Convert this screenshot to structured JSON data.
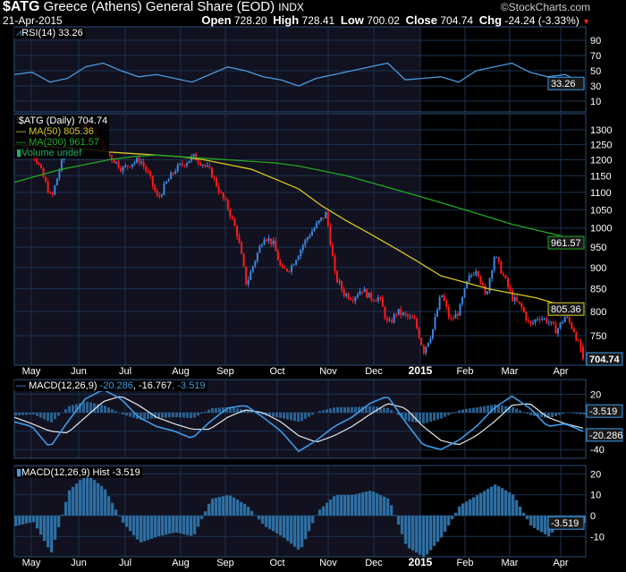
{
  "header": {
    "symbol": "$ATG",
    "name": "Greece (Athens) General Share (EOD)",
    "exchange": "INDX",
    "date": "21-Apr-2015",
    "copyright": "©StockCharts.com",
    "open_label": "Open",
    "open": "728.20",
    "high_label": "High",
    "high": "728.41",
    "low_label": "Low",
    "low": "700.02",
    "close_label": "Close",
    "close": "704.74",
    "chg_label": "Chg",
    "chg": "-24.24 (-3.33%)",
    "chg_arrow": "▼"
  },
  "colors": {
    "up": "#3d86e0",
    "down": "#ff1a1a",
    "ma50": "#d8c820",
    "ma200": "#22a822",
    "macd": "#3d9be8",
    "signal": "#e8e8e8",
    "hist": "#2f6fa3",
    "grid": "#1c3350",
    "bg_old": "#11111f",
    "bg_new": "#000000"
  },
  "chart_data": [
    {
      "type": "line",
      "title": "RSI(14) 33.26",
      "legend": "RSI(14) 33.26",
      "yticks": [
        "90",
        "70",
        "50",
        "30",
        "10"
      ],
      "ylim": [
        0,
        100
      ],
      "last_label": "33.26",
      "values": [
        45,
        48,
        35,
        40,
        55,
        60,
        50,
        42,
        45,
        40,
        35,
        45,
        55,
        50,
        42,
        38,
        30,
        40,
        45,
        50,
        55,
        60,
        38,
        40,
        42,
        35,
        50,
        55,
        60,
        48,
        42,
        45,
        33.26
      ]
    },
    {
      "type": "candlestick",
      "legend": [
        "$ATG (Daily) 704.74",
        "MA(50) 805.36",
        "MA(200) 961.57",
        "Volume undef"
      ],
      "scale": "log",
      "yticks": [
        "1300",
        "1250",
        "1200",
        "1150",
        "1100",
        "1050",
        "1000",
        "950",
        "900",
        "850",
        "800",
        "750"
      ],
      "closes": [
        1230,
        1250,
        1220,
        1150,
        1080,
        1180,
        1250,
        1300,
        1320,
        1280,
        1230,
        1200,
        1170,
        1190,
        1200,
        1150,
        1080,
        1130,
        1170,
        1190,
        1210,
        1190,
        1160,
        1100,
        1050,
        980,
        860,
        920,
        980,
        960,
        890,
        900,
        940,
        980,
        1010,
        1040,
        880,
        840,
        830,
        850,
        830,
        830,
        770,
        800,
        790,
        780,
        720,
        760,
        840,
        780,
        800,
        870,
        900,
        830,
        930,
        880,
        830,
        810,
        770,
        790,
        780,
        760,
        790,
        760,
        704.74
      ],
      "ma50": [
        1250,
        1245,
        1240,
        1235,
        1225,
        1220,
        1215,
        1210,
        1200,
        1185,
        1170,
        1140,
        1110,
        1060,
        1020,
        985,
        950,
        915,
        880,
        865,
        850,
        840,
        830,
        815,
        805.36
      ],
      "ma200": [
        1130,
        1150,
        1170,
        1185,
        1200,
        1210,
        1215,
        1210,
        1205,
        1200,
        1195,
        1190,
        1180,
        1165,
        1150,
        1130,
        1110,
        1090,
        1070,
        1050,
        1030,
        1010,
        995,
        980,
        961.57
      ],
      "last_labels": {
        "ma200": "961.57",
        "ma50": "805.36",
        "close": "704.74"
      }
    },
    {
      "type": "line",
      "legend_prefix": "MACD(12,26,9)",
      "legend_macd": "-20.286",
      "legend_signal": ", -16.767",
      "legend_hist": ", -3.519",
      "yticks": [
        "20",
        "-40"
      ],
      "ylim": [
        -55,
        30
      ],
      "macd": [
        -10,
        -15,
        -38,
        -10,
        15,
        25,
        15,
        -5,
        -15,
        -20,
        -28,
        -10,
        5,
        8,
        -5,
        -20,
        -42,
        -30,
        -15,
        -5,
        10,
        18,
        -10,
        -35,
        -40,
        -30,
        -15,
        5,
        18,
        5,
        -15,
        -12,
        -20.286
      ],
      "signal": [
        -5,
        -12,
        -20,
        -22,
        -5,
        12,
        18,
        8,
        -5,
        -12,
        -18,
        -18,
        -5,
        3,
        0,
        -10,
        -25,
        -32,
        -25,
        -15,
        -2,
        10,
        5,
        -15,
        -30,
        -35,
        -25,
        -10,
        8,
        10,
        -5,
        -12,
        -16.767
      ],
      "last_labels": [
        "-3.519",
        "-20.286"
      ]
    },
    {
      "type": "bar",
      "legend": "MACD(12,26,9) Hist -3.519",
      "yticks": [
        "20",
        "10",
        "0",
        "-10"
      ],
      "ylim": [
        -20,
        25
      ],
      "last_label": "-3.519",
      "note": "hist = macd - signal"
    }
  ],
  "xaxis": {
    "labels": [
      "May",
      "Jun",
      "Jul",
      "Aug",
      "Sep",
      "Oct",
      "Nov",
      "Dec",
      "2015",
      "Feb",
      "Mar",
      "Apr"
    ]
  }
}
